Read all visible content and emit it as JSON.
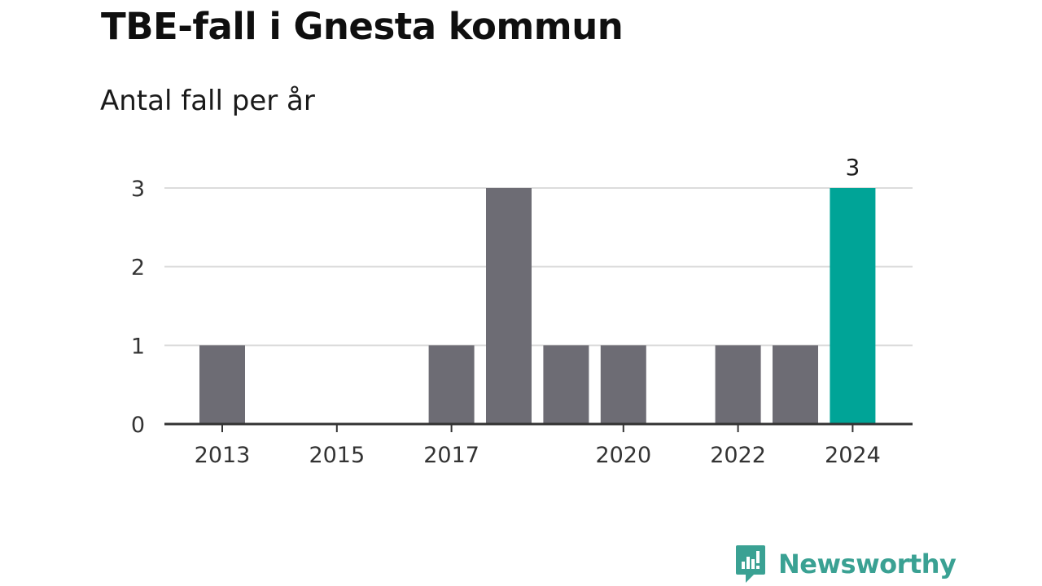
{
  "header": {
    "title": "TBE-fall i Gnesta kommun",
    "subtitle": "Antal fall per år"
  },
  "chart_data": {
    "type": "bar",
    "title": "TBE-fall i Gnesta kommun",
    "subtitle": "Antal fall per år",
    "categories": [
      "2013",
      "2014",
      "2015",
      "2016",
      "2017",
      "2018",
      "2019",
      "2020",
      "2021",
      "2022",
      "2023",
      "2024"
    ],
    "values": [
      1,
      0,
      0,
      0,
      1,
      3,
      1,
      1,
      0,
      1,
      1,
      3
    ],
    "xticks": [
      "2013",
      "2015",
      "2017",
      "2020",
      "2022",
      "2024"
    ],
    "yticks": [
      0,
      1,
      2,
      3
    ],
    "ylim": [
      0,
      3
    ],
    "xlabel": "",
    "ylabel": "",
    "grid": true,
    "highlight": {
      "category": "2024",
      "label": "3"
    },
    "colors": {
      "bar": "#6d6c74",
      "highlight": "#00a497",
      "grid": "#dcdcdc",
      "axis": "#333333"
    }
  },
  "branding": {
    "logo_icon": "newsworthy-chart-bubble-icon",
    "logo_text": "Newsworthy",
    "logo_color": "#3aa193"
  }
}
